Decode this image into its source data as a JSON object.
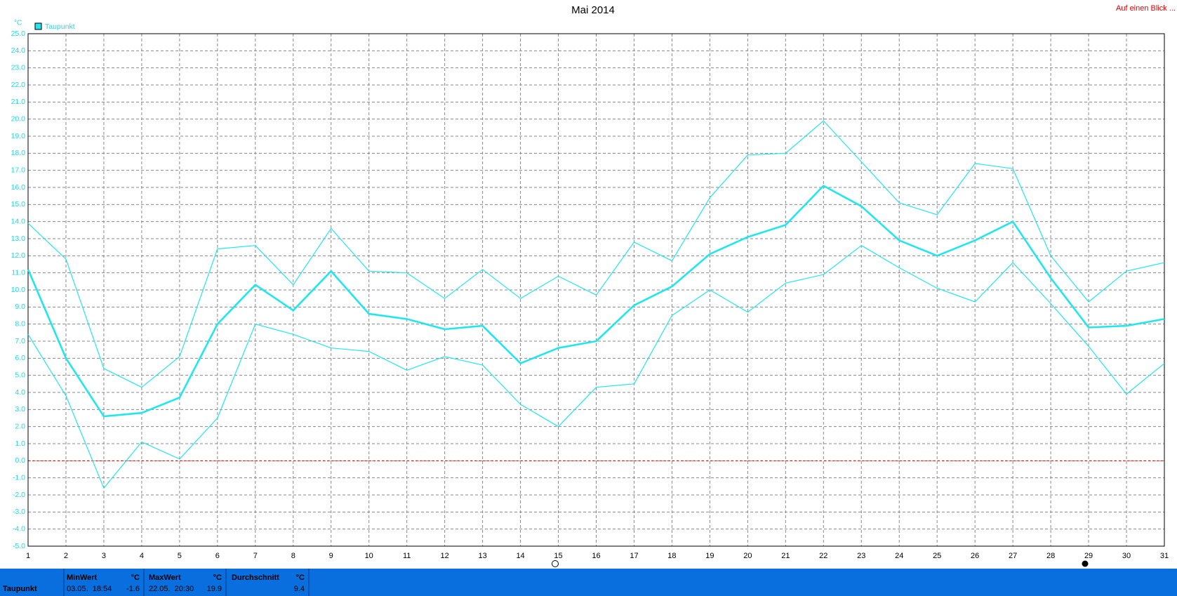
{
  "chart_data": {
    "type": "line",
    "title": "Mai 2014",
    "y_unit": "°C",
    "x": [
      1,
      2,
      3,
      4,
      5,
      6,
      7,
      8,
      9,
      10,
      11,
      12,
      13,
      14,
      15,
      16,
      17,
      18,
      19,
      20,
      21,
      22,
      23,
      24,
      25,
      26,
      27,
      28,
      29,
      30,
      31
    ],
    "xlim": [
      1,
      31
    ],
    "xticks": [
      1,
      2,
      3,
      4,
      5,
      6,
      7,
      8,
      9,
      10,
      11,
      12,
      13,
      14,
      15,
      16,
      17,
      18,
      19,
      20,
      21,
      22,
      23,
      24,
      25,
      26,
      27,
      28,
      29,
      30,
      31
    ],
    "ylim": [
      -5,
      25
    ],
    "yticks": [
      {
        "value": 25,
        "label": "25.0"
      },
      {
        "value": 24,
        "label": "24.0"
      },
      {
        "value": 23,
        "label": "23.0"
      },
      {
        "value": 22,
        "label": "22.0"
      },
      {
        "value": 21,
        "label": "21.0"
      },
      {
        "value": 20,
        "label": "20.0"
      },
      {
        "value": 19,
        "label": "19.0"
      },
      {
        "value": 18,
        "label": "18.0"
      },
      {
        "value": 17,
        "label": "17.0"
      },
      {
        "value": 16,
        "label": "16.0"
      },
      {
        "value": 15,
        "label": "15.0"
      },
      {
        "value": 14,
        "label": "14.0"
      },
      {
        "value": 13,
        "label": "13.0"
      },
      {
        "value": 12,
        "label": "12.0"
      },
      {
        "value": 11,
        "label": "11.0"
      },
      {
        "value": 10,
        "label": "10.0"
      },
      {
        "value": 9,
        "label": "9.0"
      },
      {
        "value": 8,
        "label": "8.0"
      },
      {
        "value": 7,
        "label": "7.0"
      },
      {
        "value": 6,
        "label": "6.0"
      },
      {
        "value": 5,
        "label": "5.0"
      },
      {
        "value": 4,
        "label": "4.0"
      },
      {
        "value": 3,
        "label": "3.0"
      },
      {
        "value": 2,
        "label": "2.0"
      },
      {
        "value": 1,
        "label": "1.0"
      },
      {
        "value": 0,
        "label": "0.0"
      },
      {
        "value": -1,
        "label": "-1.0"
      },
      {
        "value": -2,
        "label": "-2.0"
      },
      {
        "value": -3,
        "label": "-3.0"
      },
      {
        "value": -4,
        "label": "-4.0"
      },
      {
        "value": -5,
        "label": "-5.0"
      }
    ],
    "grid": true,
    "zero_line_color": "#e00000",
    "series": [
      {
        "color": "#22e6ee",
        "line_width": 1.2,
        "values": [
          13.9,
          11.8,
          5.4,
          4.3,
          6.1,
          12.4,
          12.6,
          10.3,
          13.6,
          11.1,
          11.0,
          9.5,
          11.2,
          9.5,
          10.8,
          9.7,
          12.8,
          11.7,
          15.4,
          17.9,
          18.0,
          19.9,
          17.5,
          15.1,
          14.4,
          17.4,
          17.1,
          12.0,
          9.3,
          11.1,
          11.6
        ]
      },
      {
        "name": "Taupunkt",
        "color": "#22e6ee",
        "line_width": 2.6,
        "values": [
          11.2,
          6.0,
          2.6,
          2.8,
          3.7,
          8.0,
          10.3,
          8.8,
          11.1,
          8.6,
          8.3,
          7.7,
          7.9,
          5.7,
          6.6,
          7.0,
          9.1,
          10.2,
          12.1,
          13.1,
          13.8,
          16.1,
          14.9,
          12.9,
          12.0,
          12.9,
          14.0,
          10.7,
          7.8,
          7.9,
          8.3
        ]
      },
      {
        "color": "#22e6ee",
        "line_width": 1.2,
        "values": [
          7.4,
          3.8,
          -1.6,
          1.1,
          0.1,
          2.5,
          8.0,
          7.4,
          6.6,
          6.4,
          5.3,
          6.1,
          5.6,
          3.3,
          2.0,
          4.3,
          4.5,
          8.5,
          10.0,
          8.7,
          10.4,
          10.9,
          12.6,
          11.3,
          10.1,
          9.3,
          11.6,
          9.2,
          6.7,
          3.9,
          5.7
        ]
      }
    ]
  },
  "link": "Auf einen Blick ...",
  "summary": {
    "label": "Taupunkt",
    "min": {
      "title": "MinWert",
      "unit": "°C",
      "time": "03.05.  18:54",
      "value": "-1.6"
    },
    "max": {
      "title": "MaxWert",
      "unit": "°C",
      "time": "22.05.  20:30",
      "value": "19.9"
    },
    "avg": {
      "title": "Durchschnitt",
      "unit": "°C",
      "value": "9.4"
    }
  }
}
